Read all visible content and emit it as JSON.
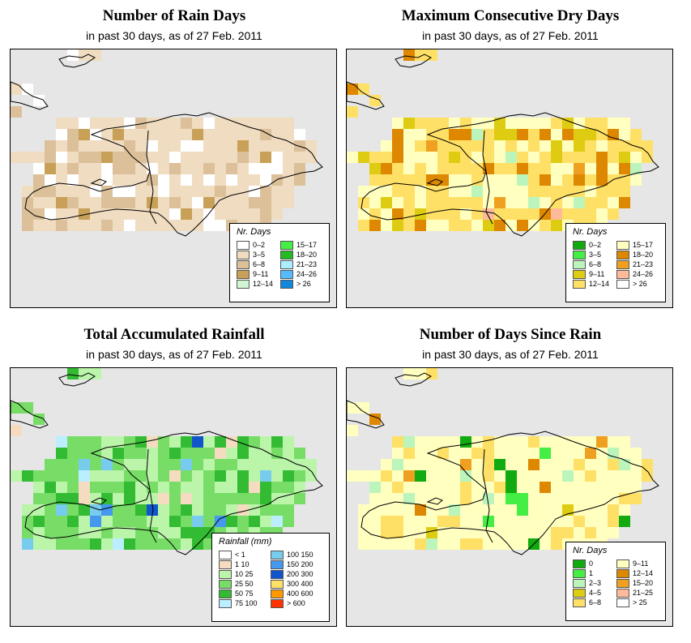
{
  "colors": {
    "land_base": "#f5e8d0",
    "ocean": "#e6e6e6",
    "coast": "#000000"
  },
  "panels": [
    {
      "id": "rain-days",
      "title": "Number of Rain Days",
      "subtitle": "in past 30 days, as of  27 Feb. 2011",
      "legend": {
        "title": "Nr. Days",
        "items": [
          {
            "label": "0–2",
            "color": "#ffffff"
          },
          {
            "label": "3–5",
            "color": "#f0dcc0"
          },
          {
            "label": "6–8",
            "color": "#dcc09a"
          },
          {
            "label": "9–11",
            "color": "#c8a058"
          },
          {
            "label": "12–14",
            "color": "#d0f5d0"
          },
          {
            "label": "15–17",
            "color": "#44ee44"
          },
          {
            "label": "18–20",
            "color": "#22bb22"
          },
          {
            "label": "21–23",
            "color": "#aaeeff"
          },
          {
            "label": "24–26",
            "color": "#55bbff"
          },
          {
            "label": "> 26",
            "color": "#1188dd"
          }
        ]
      }
    },
    {
      "id": "dry-days",
      "title": "Maximum Consecutive Dry Days",
      "subtitle": "in past 30 days, as of  27 Feb. 2011",
      "legend": {
        "title": "Nr. Days",
        "items": [
          {
            "label": "0–2",
            "color": "#11aa11"
          },
          {
            "label": "3–5",
            "color": "#44ee44"
          },
          {
            "label": "6–8",
            "color": "#bbf5bb"
          },
          {
            "label": "9–11",
            "color": "#ddcc11"
          },
          {
            "label": "12–14",
            "color": "#ffe066"
          },
          {
            "label": "15–17",
            "color": "#ffffc0"
          },
          {
            "label": "18–20",
            "color": "#dd8800"
          },
          {
            "label": "21–23",
            "color": "#f0a020"
          },
          {
            "label": "24–26",
            "color": "#ffbb99"
          },
          {
            "label": "> 26",
            "color": "#ffffff"
          }
        ]
      }
    },
    {
      "id": "rainfall",
      "title": "Total Accumulated Rainfall",
      "subtitle": "in past 30 days, as of  27 Feb. 2011",
      "legend": {
        "title": "Rainfall (mm)",
        "items": [
          {
            "label": "< 1",
            "color": "#ffffff"
          },
          {
            "label": "1   10",
            "color": "#f5dcc0"
          },
          {
            "label": "10   25",
            "color": "#bbf5aa"
          },
          {
            "label": "25   50",
            "color": "#77dd66"
          },
          {
            "label": "50   75",
            "color": "#33bb33"
          },
          {
            "label": "75  100",
            "color": "#bbeeff"
          },
          {
            "label": "100  150",
            "color": "#77ccee"
          },
          {
            "label": "150  200",
            "color": "#4499ee"
          },
          {
            "label": "200  300",
            "color": "#1155cc"
          },
          {
            "label": "300  400",
            "color": "#ffe066"
          },
          {
            "label": "400  600",
            "color": "#ff9900"
          },
          {
            "label": "> 600",
            "color": "#ff3300"
          }
        ]
      }
    },
    {
      "id": "since-rain",
      "title": "Number of Days Since Rain",
      "subtitle": "in past 30 days, as of  27 Feb. 2011",
      "legend": {
        "title": "Nr. Days",
        "items": [
          {
            "label": "0",
            "color": "#11aa11"
          },
          {
            "label": "1",
            "color": "#44ee44"
          },
          {
            "label": "2–3",
            "color": "#bbf5bb"
          },
          {
            "label": "4–5",
            "color": "#ddcc11"
          },
          {
            "label": "6–8",
            "color": "#ffe066"
          },
          {
            "label": "9–11",
            "color": "#ffffc0"
          },
          {
            "label": "12–14",
            "color": "#dd8800"
          },
          {
            "label": "15–20",
            "color": "#f0a020"
          },
          {
            "label": "21–25",
            "color": "#ffbb99"
          },
          {
            "label": "> 25",
            "color": "#ffffff"
          }
        ]
      }
    }
  ]
}
